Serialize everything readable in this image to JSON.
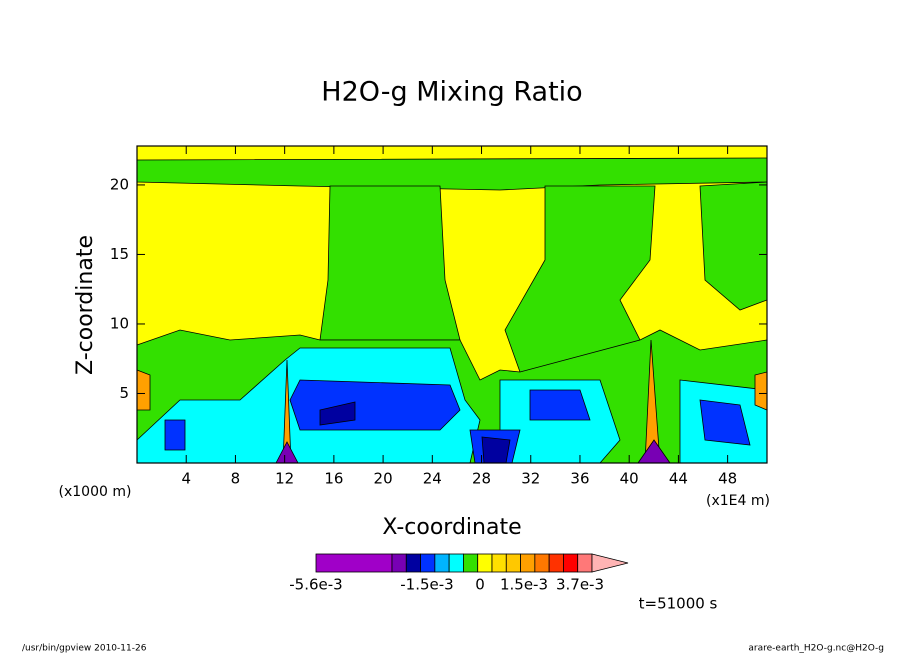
{
  "chart_data": {
    "type": "contour",
    "title": "H2O-g Mixing Ratio",
    "x_label": "X-coordinate",
    "y_label": "Z-coordinate",
    "x_unit_left": "(x1000 m)",
    "x_unit_right": "(x1E4 m)",
    "xlim": [
      0,
      51.2
    ],
    "ylim": [
      0,
      22.8
    ],
    "xticks": [
      4,
      8,
      12,
      16,
      20,
      24,
      28,
      32,
      36,
      40,
      44,
      48
    ],
    "yticks": [
      5,
      10,
      15,
      20
    ],
    "colorbar": {
      "colors": [
        "#a000c8",
        "#7800b4",
        "#0000a0",
        "#0032ff",
        "#00b4ff",
        "#00ffff",
        "#33e000",
        "#ffff00",
        "#ffe000",
        "#ffc800",
        "#ffa000",
        "#ff7800",
        "#ff3200",
        "#ff0000",
        "#ff7878",
        "#ffb4b4"
      ],
      "ticks": [
        {
          "value": -0.0056,
          "label": "-5.6e-3"
        },
        {
          "value": -0.0015,
          "label": "-1.5e-3"
        },
        0,
        {
          "value": 0.0015,
          "label": "1.5e-3"
        },
        {
          "value": 0.0037,
          "label": "3.7e-3"
        }
      ]
    },
    "time_label": "t=51000 s",
    "footer_left": "/usr/bin/gpview  2010-11-26",
    "footer_right": "arare-earth_H2O-g.nc@H2O-g"
  }
}
